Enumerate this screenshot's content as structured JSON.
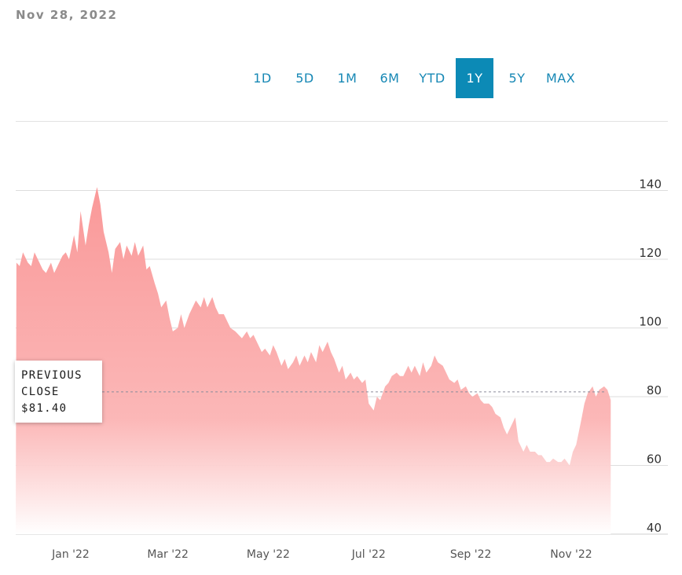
{
  "header": {
    "date": "Nov 28, 2022"
  },
  "range_selector": {
    "options": [
      "1D",
      "5D",
      "1M",
      "6M",
      "YTD",
      "1Y",
      "5Y",
      "MAX"
    ],
    "selected": "1Y"
  },
  "previous_close": {
    "line1": "PREVIOUS",
    "line2": "CLOSE",
    "value_text": "$81.40",
    "value": 81.4
  },
  "colors": {
    "accent": "#0c8ab6",
    "area": "#f98f8f",
    "text": "#333333",
    "grid": "#dddddd"
  },
  "chart_data": {
    "type": "area",
    "title": "",
    "xlabel": "",
    "ylabel": "",
    "ylim": [
      40,
      150
    ],
    "y_ticks": [
      40,
      60,
      80,
      100,
      120,
      140
    ],
    "x_ticks": [
      {
        "label": "Jan '22",
        "date": "2022-01-01"
      },
      {
        "label": "Mar '22",
        "date": "2022-03-01"
      },
      {
        "label": "May '22",
        "date": "2022-05-01"
      },
      {
        "label": "Jul '22",
        "date": "2022-07-01"
      },
      {
        "label": "Sep '22",
        "date": "2022-09-01"
      },
      {
        "label": "Nov '22",
        "date": "2022-11-01"
      }
    ],
    "grid": true,
    "reference_line": {
      "label": "PREVIOUS CLOSE",
      "value": 81.4
    },
    "series": [
      {
        "values": [
          [
            "2021-11-29",
            119
          ],
          [
            "2021-12-01",
            118
          ],
          [
            "2021-12-03",
            122
          ],
          [
            "2021-12-06",
            119
          ],
          [
            "2021-12-08",
            118
          ],
          [
            "2021-12-10",
            122
          ],
          [
            "2021-12-13",
            119
          ],
          [
            "2021-12-15",
            117
          ],
          [
            "2021-12-17",
            116
          ],
          [
            "2021-12-20",
            119
          ],
          [
            "2021-12-22",
            116
          ],
          [
            "2021-12-24",
            118
          ],
          [
            "2021-12-27",
            121
          ],
          [
            "2021-12-29",
            122
          ],
          [
            "2021-12-31",
            120
          ],
          [
            "2022-01-03",
            127
          ],
          [
            "2022-01-05",
            122
          ],
          [
            "2022-01-07",
            134
          ],
          [
            "2022-01-10",
            124
          ],
          [
            "2022-01-12",
            130
          ],
          [
            "2022-01-14",
            135
          ],
          [
            "2022-01-17",
            141
          ],
          [
            "2022-01-19",
            136
          ],
          [
            "2022-01-21",
            128
          ],
          [
            "2022-01-24",
            122
          ],
          [
            "2022-01-26",
            116
          ],
          [
            "2022-01-28",
            123
          ],
          [
            "2022-01-31",
            125
          ],
          [
            "2022-02-02",
            120
          ],
          [
            "2022-02-04",
            124
          ],
          [
            "2022-02-07",
            121
          ],
          [
            "2022-02-09",
            125
          ],
          [
            "2022-02-11",
            121
          ],
          [
            "2022-02-14",
            124
          ],
          [
            "2022-02-16",
            117
          ],
          [
            "2022-02-18",
            118
          ],
          [
            "2022-02-21",
            113
          ],
          [
            "2022-02-23",
            110
          ],
          [
            "2022-02-25",
            106
          ],
          [
            "2022-02-28",
            108
          ],
          [
            "2022-03-02",
            103
          ],
          [
            "2022-03-04",
            99
          ],
          [
            "2022-03-07",
            100
          ],
          [
            "2022-03-09",
            104
          ],
          [
            "2022-03-11",
            100
          ],
          [
            "2022-03-14",
            104
          ],
          [
            "2022-03-16",
            106
          ],
          [
            "2022-03-18",
            108
          ],
          [
            "2022-03-21",
            106
          ],
          [
            "2022-03-23",
            109
          ],
          [
            "2022-03-25",
            106
          ],
          [
            "2022-03-28",
            109
          ],
          [
            "2022-03-30",
            106
          ],
          [
            "2022-04-01",
            104
          ],
          [
            "2022-04-04",
            104
          ],
          [
            "2022-04-06",
            102
          ],
          [
            "2022-04-08",
            100
          ],
          [
            "2022-04-11",
            99
          ],
          [
            "2022-04-13",
            98
          ],
          [
            "2022-04-15",
            97
          ],
          [
            "2022-04-18",
            99
          ],
          [
            "2022-04-20",
            97
          ],
          [
            "2022-04-22",
            98
          ],
          [
            "2022-04-25",
            95
          ],
          [
            "2022-04-27",
            93
          ],
          [
            "2022-04-29",
            94
          ],
          [
            "2022-05-02",
            92
          ],
          [
            "2022-05-04",
            95
          ],
          [
            "2022-05-06",
            93
          ],
          [
            "2022-05-09",
            89
          ],
          [
            "2022-05-11",
            91
          ],
          [
            "2022-05-13",
            88
          ],
          [
            "2022-05-16",
            90
          ],
          [
            "2022-05-18",
            92
          ],
          [
            "2022-05-20",
            89
          ],
          [
            "2022-05-23",
            92
          ],
          [
            "2022-05-25",
            90
          ],
          [
            "2022-05-27",
            93
          ],
          [
            "2022-05-30",
            90
          ],
          [
            "2022-06-01",
            95
          ],
          [
            "2022-06-03",
            93
          ],
          [
            "2022-06-06",
            96
          ],
          [
            "2022-06-08",
            93
          ],
          [
            "2022-06-10",
            91
          ],
          [
            "2022-06-13",
            87
          ],
          [
            "2022-06-15",
            89
          ],
          [
            "2022-06-17",
            85
          ],
          [
            "2022-06-20",
            87
          ],
          [
            "2022-06-22",
            85
          ],
          [
            "2022-06-24",
            86
          ],
          [
            "2022-06-27",
            84
          ],
          [
            "2022-06-29",
            85
          ],
          [
            "2022-07-01",
            78
          ],
          [
            "2022-07-04",
            76
          ],
          [
            "2022-07-06",
            80
          ],
          [
            "2022-07-08",
            79
          ],
          [
            "2022-07-11",
            83
          ],
          [
            "2022-07-13",
            84
          ],
          [
            "2022-07-15",
            86
          ],
          [
            "2022-07-18",
            87
          ],
          [
            "2022-07-20",
            86
          ],
          [
            "2022-07-22",
            86
          ],
          [
            "2022-07-25",
            89
          ],
          [
            "2022-07-27",
            87
          ],
          [
            "2022-07-29",
            89
          ],
          [
            "2022-08-01",
            86
          ],
          [
            "2022-08-03",
            90
          ],
          [
            "2022-08-05",
            87
          ],
          [
            "2022-08-08",
            89
          ],
          [
            "2022-08-10",
            92
          ],
          [
            "2022-08-12",
            90
          ],
          [
            "2022-08-15",
            89
          ],
          [
            "2022-08-17",
            87
          ],
          [
            "2022-08-19",
            85
          ],
          [
            "2022-08-22",
            84
          ],
          [
            "2022-08-24",
            85
          ],
          [
            "2022-08-26",
            82
          ],
          [
            "2022-08-29",
            83
          ],
          [
            "2022-08-31",
            81
          ],
          [
            "2022-09-02",
            80
          ],
          [
            "2022-09-05",
            81
          ],
          [
            "2022-09-07",
            79
          ],
          [
            "2022-09-09",
            78
          ],
          [
            "2022-09-12",
            78
          ],
          [
            "2022-09-14",
            77
          ],
          [
            "2022-09-16",
            75
          ],
          [
            "2022-09-19",
            74
          ],
          [
            "2022-09-21",
            71
          ],
          [
            "2022-09-23",
            69
          ],
          [
            "2022-09-26",
            72
          ],
          [
            "2022-09-28",
            74
          ],
          [
            "2022-09-30",
            67
          ],
          [
            "2022-10-03",
            64
          ],
          [
            "2022-10-05",
            66
          ],
          [
            "2022-10-07",
            64
          ],
          [
            "2022-10-10",
            64
          ],
          [
            "2022-10-12",
            63
          ],
          [
            "2022-10-14",
            63
          ],
          [
            "2022-10-17",
            61
          ],
          [
            "2022-10-19",
            61
          ],
          [
            "2022-10-21",
            62
          ],
          [
            "2022-10-24",
            61
          ],
          [
            "2022-10-26",
            61
          ],
          [
            "2022-10-28",
            62
          ],
          [
            "2022-10-31",
            60
          ],
          [
            "2022-11-02",
            64
          ],
          [
            "2022-11-04",
            66
          ],
          [
            "2022-11-07",
            73
          ],
          [
            "2022-11-09",
            78
          ],
          [
            "2022-11-11",
            81
          ],
          [
            "2022-11-14",
            83
          ],
          [
            "2022-11-16",
            80
          ],
          [
            "2022-11-18",
            82
          ],
          [
            "2022-11-21",
            83
          ],
          [
            "2022-11-23",
            82
          ],
          [
            "2022-11-25",
            79
          ]
        ]
      }
    ]
  }
}
